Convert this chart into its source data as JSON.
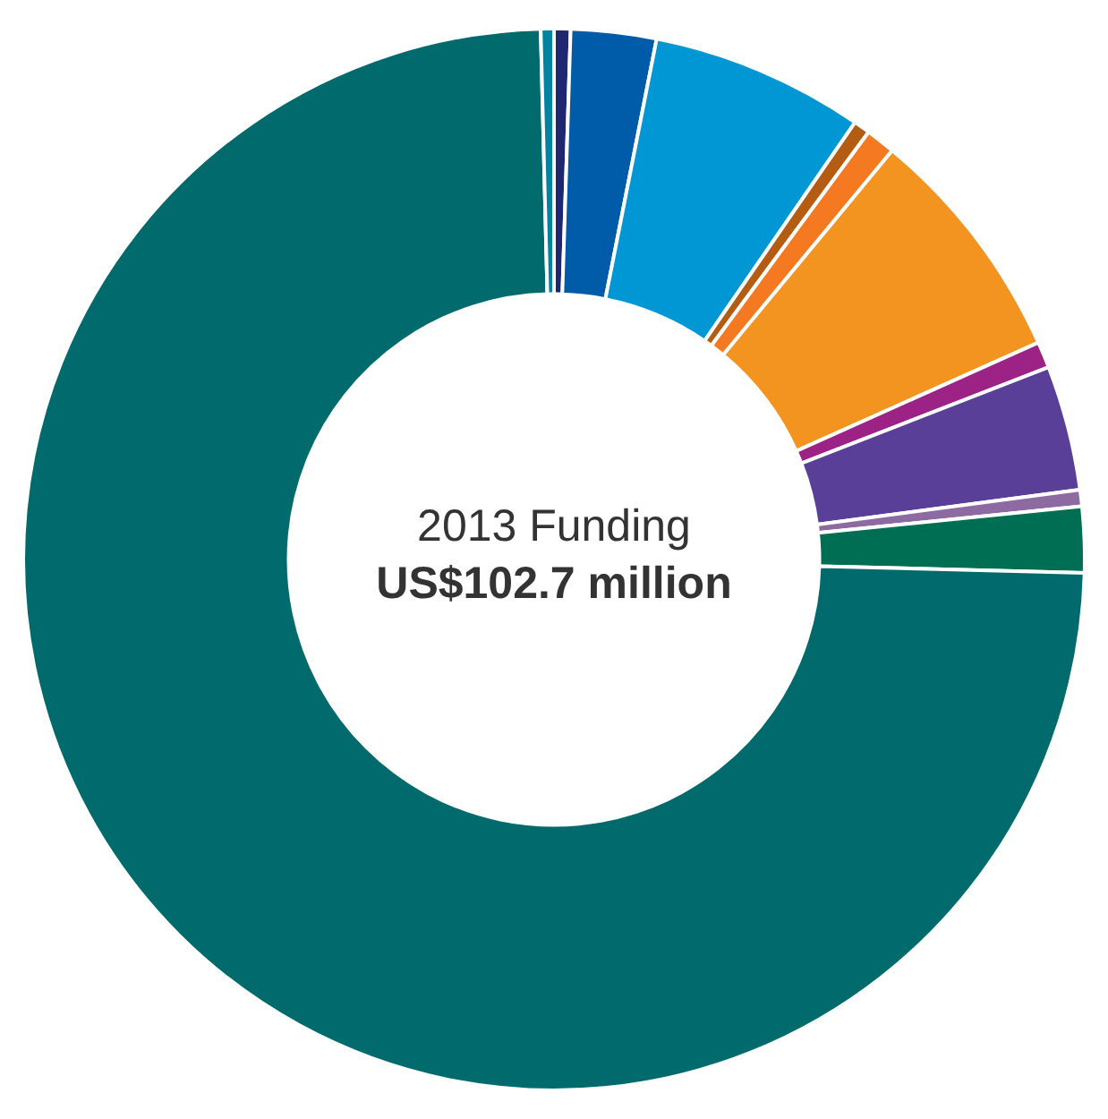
{
  "chart_data": {
    "type": "donut",
    "title": "2013 Funding",
    "subtitle": "US$102.7 million",
    "categories": [
      null,
      null,
      null,
      null,
      null,
      null,
      null,
      null,
      null,
      null,
      null,
      null
    ],
    "values": [
      0.5,
      2.6,
      6.5,
      0.5,
      0.9,
      7.3,
      0.8,
      3.8,
      0.5,
      2.0,
      74.2,
      0.4
    ],
    "colors": [
      "#1f2770",
      "#005ca8",
      "#0097d4",
      "#b35c12",
      "#f47920",
      "#f39320",
      "#9c2286",
      "#5a3f98",
      "#8e6aa2",
      "#006e52",
      "#006a6c",
      "#0083a0"
    ]
  }
}
